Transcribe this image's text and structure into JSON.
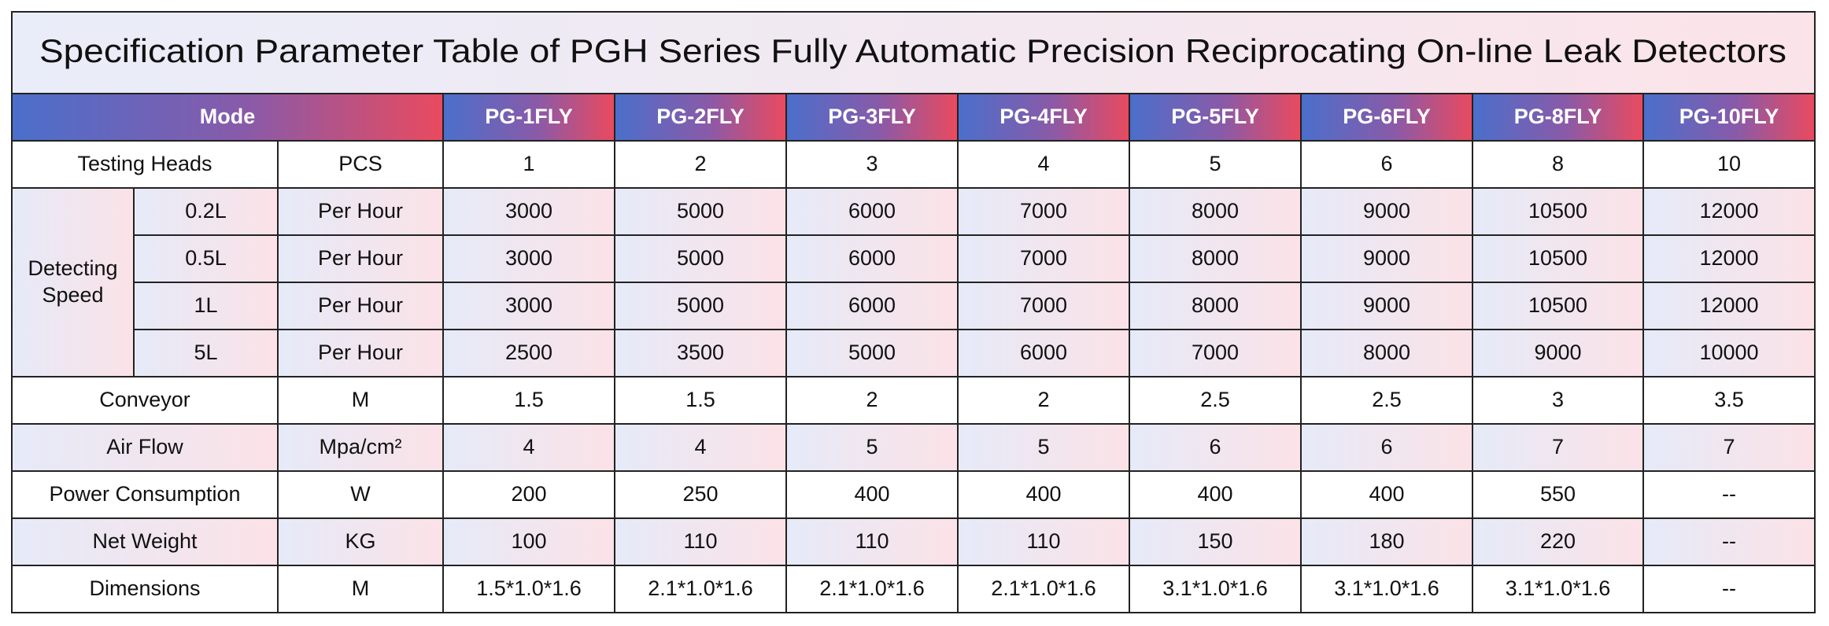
{
  "header": {
    "title": "Specification Parameter Table of PGH Series Fully Automatic Precision Reciprocating On-line Leak Detectors"
  },
  "table": {
    "mode_label": "Mode",
    "models": [
      "PG-1FLY",
      "PG-2FLY",
      "PG-3FLY",
      "PG-4FLY",
      "PG-5FLY",
      "PG-6FLY",
      "PG-8FLY",
      "PG-10FLY"
    ],
    "rows": [
      {
        "label": "Testing Heads",
        "unit": "PCS",
        "values": [
          1,
          2,
          3,
          4,
          5,
          6,
          8,
          10
        ]
      },
      {
        "label": "Detecting Speed",
        "subrows": [
          {
            "label": "0.2L",
            "unit": "Per Hour",
            "values": [
              3000,
              5000,
              6000,
              7000,
              8000,
              9000,
              10500,
              12000
            ]
          },
          {
            "label": "0.5L",
            "unit": "Per Hour",
            "values": [
              3000,
              5000,
              6000,
              7000,
              8000,
              9000,
              10500,
              12000
            ]
          },
          {
            "label": "1L",
            "unit": "Per Hour",
            "values": [
              3000,
              5000,
              6000,
              7000,
              8000,
              9000,
              10500,
              12000
            ]
          },
          {
            "label": "5L",
            "unit": "Per Hour",
            "values": [
              2500,
              3500,
              5000,
              6000,
              7000,
              8000,
              9000,
              10000
            ]
          }
        ]
      },
      {
        "label": "Conveyor",
        "unit": "M",
        "values": [
          1.5,
          1.5,
          2,
          2,
          2.5,
          2.5,
          3,
          3.5
        ]
      },
      {
        "label": "Air Flow",
        "unit": "Mpa/cm²",
        "values": [
          4,
          4,
          5,
          5,
          6,
          6,
          7,
          7
        ]
      },
      {
        "label": "Power Consumption",
        "unit": "W",
        "values": [
          200,
          250,
          400,
          400,
          400,
          400,
          550,
          "--"
        ]
      },
      {
        "label": "Net Weight",
        "unit": "KG",
        "values": [
          100,
          110,
          110,
          110,
          150,
          180,
          220,
          "--"
        ]
      },
      {
        "label": "Dimensions",
        "unit": "M",
        "values": [
          "1.5*1.0*1.6",
          "2.1*1.0*1.6",
          "2.1*1.0*1.6",
          "2.1*1.0*1.6",
          "3.1*1.0*1.6",
          "3.1*1.0*1.6",
          "3.1*1.0*1.6",
          "--"
        ]
      }
    ]
  }
}
